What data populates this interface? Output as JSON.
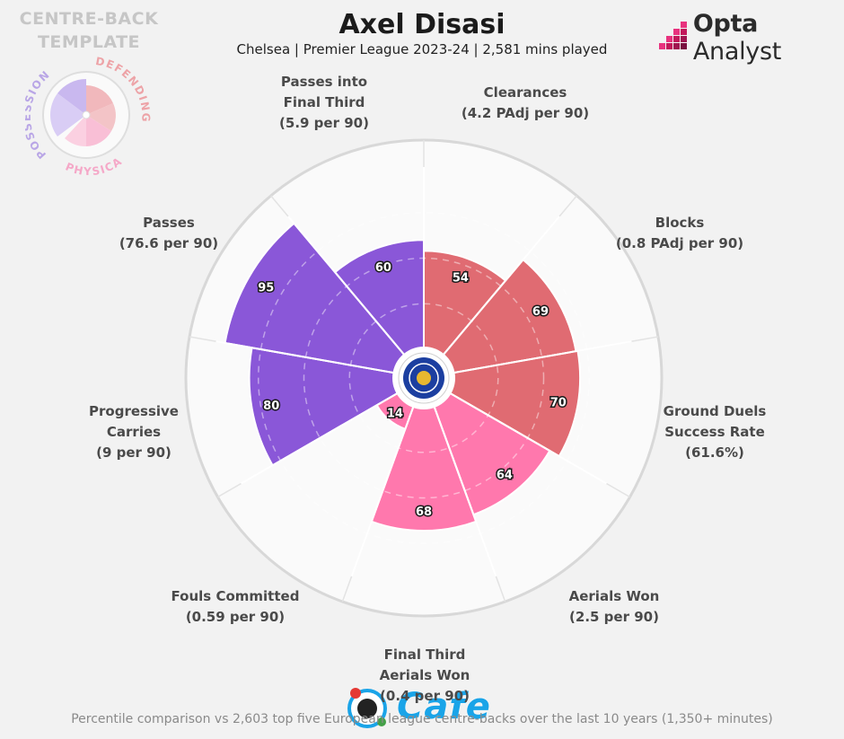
{
  "header": {
    "title": "Axel Disasi",
    "subtitle": "Chelsea | Premier League 2023-24 | 2,581 mins played"
  },
  "template": {
    "title": "CENTRE-BACK\nTEMPLATE",
    "groups": [
      "POSSESSION",
      "DEFENDING",
      "PHYSICAL"
    ]
  },
  "brand": {
    "name_bold": "Opta",
    "name_rest": " Analyst"
  },
  "watermark": {
    "text": "Cafe"
  },
  "footnote": "Percentile comparison vs 2,603 top five European league centre-backs over the last 10 years (1,350+ minutes)",
  "colors": {
    "possession": "#8a57d8",
    "defending": "#e06b72",
    "physical": "#ff78ad",
    "background": "#f2f2f2"
  },
  "chart_data": {
    "type": "polar-bar",
    "scale": [
      0,
      100
    ],
    "metrics": [
      {
        "label": "Clearances\n(4.2 PAdj per 90)",
        "value": 54,
        "group": "defending"
      },
      {
        "label": "Blocks\n(0.8 PAdj per 90)",
        "value": 69,
        "group": "defending"
      },
      {
        "label": "Ground Duels\nSuccess Rate\n(61.6%)",
        "value": 70,
        "group": "defending"
      },
      {
        "label": "Aerials Won\n(2.5 per 90)",
        "value": 64,
        "group": "physical"
      },
      {
        "label": "Final Third\nAerials Won\n(0.4 per 90)",
        "value": 68,
        "group": "physical"
      },
      {
        "label": "Fouls Committed\n(0.59 per 90)",
        "value": 14,
        "group": "physical"
      },
      {
        "label": "Progressive\nCarries\n(9 per 90)",
        "value": 80,
        "group": "possession"
      },
      {
        "label": "Passes\n(76.6 per 90)",
        "value": 95,
        "group": "possession"
      },
      {
        "label": "Passes into\nFinal Third\n(5.9 per 90)",
        "value": 60,
        "group": "possession"
      }
    ]
  }
}
